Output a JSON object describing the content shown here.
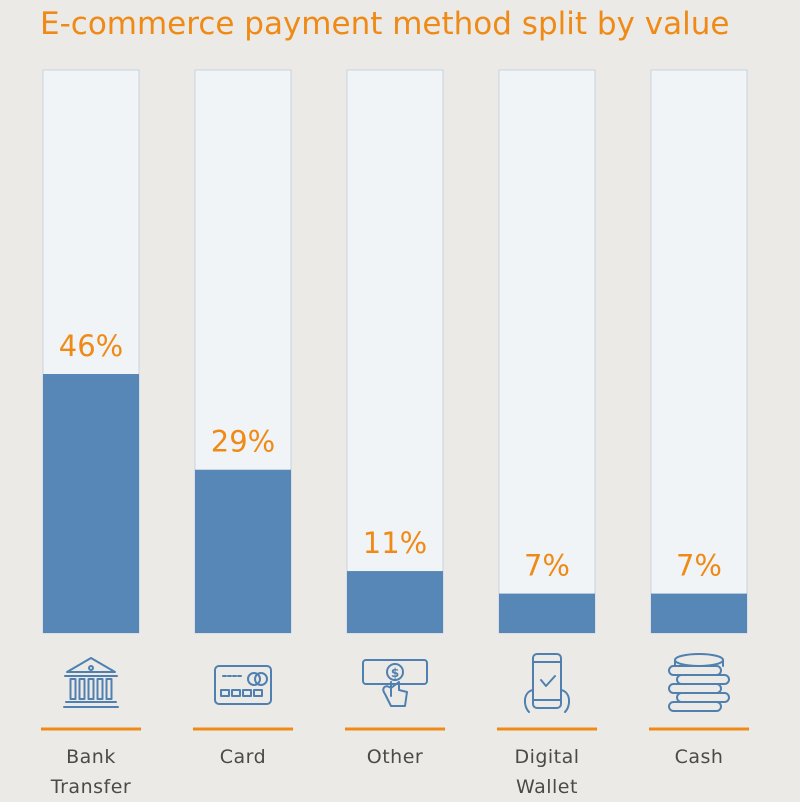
{
  "chart_data": {
    "type": "bar",
    "title": "E-commerce payment method split by value",
    "categories": [
      {
        "label_lines": [
          "Bank",
          "Transfer"
        ],
        "value_label": "46%",
        "icon": "bank-icon"
      },
      {
        "label_lines": [
          "Card"
        ],
        "value_label": "29%",
        "icon": "credit-card-icon"
      },
      {
        "label_lines": [
          "Other"
        ],
        "value_label": "11%",
        "icon": "hand-coin-icon"
      },
      {
        "label_lines": [
          "Digital",
          "Wallet"
        ],
        "value_label": "7%",
        "icon": "mobile-wallet-icon"
      },
      {
        "label_lines": [
          "Cash"
        ],
        "value_label": "7%",
        "icon": "coin-stack-icon"
      }
    ],
    "values": [
      46,
      29,
      11,
      7,
      7
    ],
    "unit": "%",
    "ylim": [
      0,
      100
    ],
    "grid": false,
    "legend": "none"
  },
  "colors": {
    "background": "#eceae6",
    "track": "#f1f4f7",
    "track_border": "#c9d3dd",
    "bar": "#5687b6",
    "accent": "#ef8a16",
    "icon": "#4f80b0",
    "label_text": "#4a4a4a"
  }
}
